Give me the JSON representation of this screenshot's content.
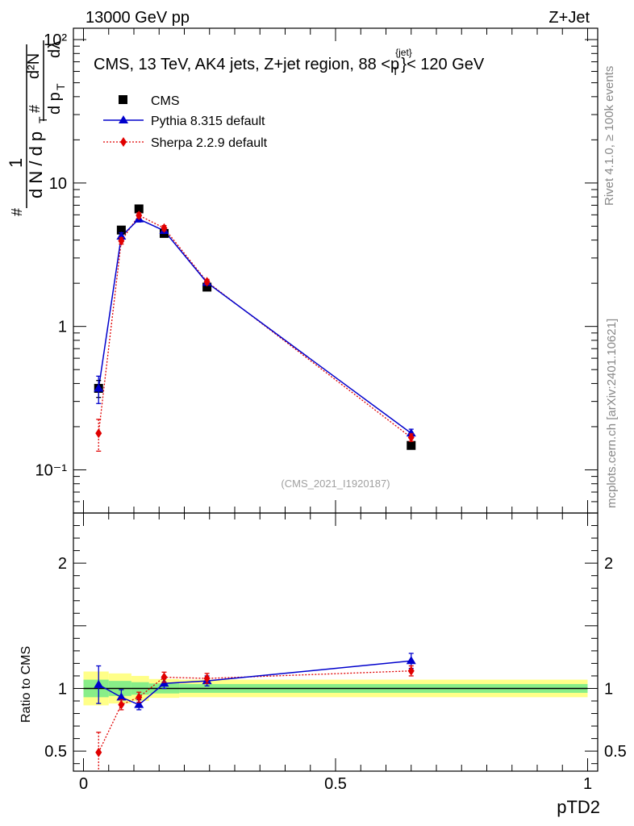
{
  "header": {
    "left": "13000 GeV pp",
    "right": "Z+Jet"
  },
  "side_text": {
    "rivet": "Rivet 4.1.0, ≥ 100k events",
    "mcplots": "mcplots.cern.ch [arXiv:2401.10621]"
  },
  "colors": {
    "cms": "#000000",
    "pythia": "#0000cc",
    "sherpa": "#e00000",
    "band_inner": "#88ee88",
    "band_outer": "#ffff88"
  },
  "chart_data": [
    {
      "type": "line",
      "scale": "log",
      "title": "CMS, 13 TeV, AK4 jets, Z+jet region, 88 <p_T^{jet}< 120 GeV",
      "title_parts": {
        "prefix": "CMS, 13 TeV, AK4 jets, Z+jet region, 88 <p",
        "sup": "{jet}",
        "sub": "T",
        "suffix": "}< 120 GeV"
      },
      "ylabel_parts": {
        "hash1": "#",
        "one": "1",
        "dN": "d N / d p",
        "dNsub": "T",
        "hash2": "#",
        "d2N": "d²N",
        "dpT": "d p",
        "dpTsub": "T",
        "dlambda": "dλ"
      },
      "xlim": [
        -0.02,
        1.02
      ],
      "ylim": [
        0.05,
        120
      ],
      "yticks": [
        {
          "value": 0.1,
          "label": "10⁻¹"
        },
        {
          "value": 1,
          "label": "1"
        },
        {
          "value": 10,
          "label": "10"
        },
        {
          "value": 100,
          "label": "10²"
        }
      ],
      "watermark": "(CMS_2021_I1920187)",
      "legend": [
        "CMS",
        "Pythia 8.315 default",
        "Sherpa 2.2.9 default"
      ],
      "series": [
        {
          "name": "CMS",
          "x": [
            0.03,
            0.075,
            0.11,
            0.16,
            0.245,
            0.65
          ],
          "y": [
            0.37,
            4.7,
            6.6,
            4.45,
            1.88,
            0.148
          ],
          "err": [
            0.05,
            0.2,
            0.25,
            0.15,
            0.08,
            0.006
          ]
        },
        {
          "name": "Pythia 8.315 default",
          "x": [
            0.03,
            0.075,
            0.11,
            0.16,
            0.245,
            0.65
          ],
          "y": [
            0.37,
            4.25,
            5.6,
            4.65,
            2.02,
            0.18
          ],
          "err": [
            0.08,
            0.25,
            0.25,
            0.2,
            0.08,
            0.012
          ]
        },
        {
          "name": "Sherpa 2.2.9 default",
          "x": [
            0.03,
            0.075,
            0.11,
            0.16,
            0.245,
            0.65
          ],
          "y": [
            0.18,
            3.95,
            5.95,
            4.85,
            2.05,
            0.168
          ],
          "err": [
            0.045,
            0.2,
            0.25,
            0.2,
            0.08,
            0.01
          ]
        }
      ]
    },
    {
      "type": "line",
      "scale": "linear",
      "xlabel": "pTD2",
      "ylabel": "Ratio to CMS",
      "xlim": [
        -0.02,
        1.02
      ],
      "ylim": [
        0.34,
        2.4
      ],
      "xticks": [
        {
          "value": 0,
          "label": "0"
        },
        {
          "value": 0.5,
          "label": "0.5"
        },
        {
          "value": 1,
          "label": "1"
        }
      ],
      "yticks": [
        {
          "value": 0.5,
          "label": "0.5"
        },
        {
          "value": 1,
          "label": "1"
        },
        {
          "value": 2,
          "label": "2"
        }
      ],
      "bands": [
        {
          "x0": 0.0,
          "x1": 0.05,
          "inner": 0.07,
          "outer": 0.135
        },
        {
          "x0": 0.05,
          "x1": 0.095,
          "inner": 0.06,
          "outer": 0.12
        },
        {
          "x0": 0.095,
          "x1": 0.13,
          "inner": 0.05,
          "outer": 0.1
        },
        {
          "x0": 0.13,
          "x1": 0.19,
          "inner": 0.04,
          "outer": 0.075
        },
        {
          "x0": 0.19,
          "x1": 0.3,
          "inner": 0.035,
          "outer": 0.07
        },
        {
          "x0": 0.3,
          "x1": 1.0,
          "inner": 0.035,
          "outer": 0.07
        }
      ],
      "series": [
        {
          "name": "Pythia 8.315 default",
          "x": [
            0.03,
            0.075,
            0.11,
            0.16,
            0.245,
            0.65
          ],
          "y": [
            1.03,
            0.93,
            0.87,
            1.04,
            1.06,
            1.22
          ],
          "err": [
            0.15,
            0.06,
            0.04,
            0.04,
            0.04,
            0.06
          ]
        },
        {
          "name": "Sherpa 2.2.9 default",
          "x": [
            0.03,
            0.075,
            0.11,
            0.16,
            0.245,
            0.65
          ],
          "y": [
            0.49,
            0.87,
            0.93,
            1.09,
            1.08,
            1.14
          ],
          "err": [
            0.16,
            0.04,
            0.04,
            0.04,
            0.04,
            0.04
          ]
        }
      ]
    }
  ]
}
